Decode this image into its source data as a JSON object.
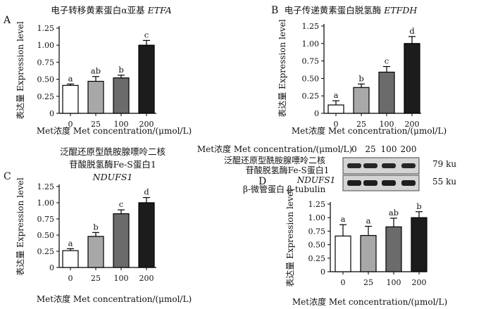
{
  "chart_data": [
    {
      "type": "bar",
      "panel": "A",
      "title": "电子转移黄素蛋白α亚基",
      "title_gene": "ETFA",
      "ylabel": "表达量 Expression level",
      "xlabel": "Met浓度 Met concentration/(μmol/L)",
      "categories": [
        "0",
        "25",
        "100",
        "200"
      ],
      "values": [
        0.41,
        0.47,
        0.52,
        1.0
      ],
      "errors": [
        0.02,
        0.07,
        0.04,
        0.07
      ],
      "significance": [
        "a",
        "ab",
        "b",
        "c"
      ],
      "colors": [
        "#ffffff",
        "#a8a8a8",
        "#6b6b6b",
        "#1c1c1c"
      ],
      "ylim": [
        0,
        1.25
      ],
      "yticks": [
        "0",
        "0.25",
        "0.50",
        "0.75",
        "1.00",
        "1.25"
      ]
    },
    {
      "type": "bar",
      "panel": "B",
      "title": "电子传递黄素蛋白脱氢酶",
      "title_gene": "ETFDH",
      "ylabel": "表达量 Expression level",
      "xlabel": "Met浓度 Met concentration/(μmol/L)",
      "categories": [
        "0",
        "25",
        "100",
        "200"
      ],
      "values": [
        0.12,
        0.37,
        0.59,
        1.0
      ],
      "errors": [
        0.06,
        0.05,
        0.08,
        0.1
      ],
      "significance": [
        "a",
        "b",
        "c",
        "d"
      ],
      "colors": [
        "#ffffff",
        "#a8a8a8",
        "#6b6b6b",
        "#1c1c1c"
      ],
      "ylim": [
        0,
        1.25
      ],
      "yticks": [
        "0",
        "0.25",
        "0.50",
        "0.75",
        "1.00",
        "1.25"
      ]
    },
    {
      "type": "bar",
      "panel": "C",
      "title_line1": "泛醌还原型酰胺腺嘌呤二核",
      "title_line2": "苷酸脱氢酶Fe-S蛋白1",
      "title_gene": "NDUFS1",
      "ylabel": "表达量 Expression level",
      "xlabel": "Met浓度 Met concentration/(μmol/L)",
      "categories": [
        "0",
        "25",
        "100",
        "200"
      ],
      "values": [
        0.26,
        0.48,
        0.83,
        1.0
      ],
      "errors": [
        0.03,
        0.06,
        0.06,
        0.08
      ],
      "significance": [
        "a",
        "b",
        "c",
        "d"
      ],
      "colors": [
        "#ffffff",
        "#a8a8a8",
        "#6b6b6b",
        "#1c1c1c"
      ],
      "ylim": [
        0,
        1.25
      ],
      "yticks": [
        "0",
        "0.25",
        "0.50",
        "0.75",
        "1.00",
        "1.25"
      ]
    },
    {
      "type": "bar",
      "panel": "D",
      "ylabel": "表达量 Expression level",
      "xlabel": "Met浓度 Met concentration/(μmol/L)",
      "categories": [
        "0",
        "25",
        "100",
        "200"
      ],
      "values": [
        0.66,
        0.67,
        0.83,
        1.0
      ],
      "errors": [
        0.21,
        0.17,
        0.16,
        0.11
      ],
      "significance": [
        "a",
        "a",
        "ab",
        "b"
      ],
      "colors": [
        "#ffffff",
        "#a8a8a8",
        "#6b6b6b",
        "#1c1c1c"
      ],
      "ylim": [
        0,
        1.25
      ],
      "yticks": [
        "0",
        "0.25",
        "0.50",
        "0.75",
        "1.00",
        "1.25"
      ]
    }
  ],
  "blot": {
    "header_label": "Met浓度 Met concentration/(μmol/L)",
    "lanes": [
      "0",
      "25",
      "100",
      "200"
    ],
    "rows": [
      {
        "name_line1": "泛醌还原型酰胺腺嘌呤二核",
        "name_line2": "苷酸脱氢酶Fe-S蛋白1",
        "gene": "NDUFS1",
        "size": "79 ku"
      },
      {
        "name": "β-微管蛋白",
        "gene": "β-tubulin",
        "size": "55 ku"
      }
    ]
  }
}
